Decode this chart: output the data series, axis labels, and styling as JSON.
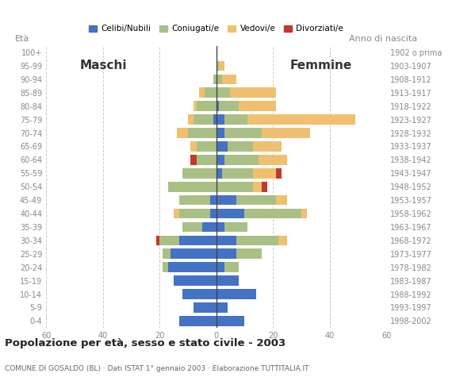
{
  "age_groups": [
    "0-4",
    "5-9",
    "10-14",
    "15-19",
    "20-24",
    "25-29",
    "30-34",
    "35-39",
    "40-44",
    "45-49",
    "50-54",
    "55-59",
    "60-64",
    "65-69",
    "70-74",
    "75-79",
    "80-84",
    "85-89",
    "90-94",
    "95-99",
    "100+"
  ],
  "birth_years": [
    "1998-2002",
    "1993-1997",
    "1988-1992",
    "1983-1987",
    "1978-1982",
    "1973-1977",
    "1968-1972",
    "1963-1967",
    "1958-1962",
    "1953-1957",
    "1948-1952",
    "1943-1947",
    "1938-1942",
    "1933-1937",
    "1928-1932",
    "1923-1927",
    "1918-1922",
    "1913-1917",
    "1908-1912",
    "1903-1907",
    "1902 o prima"
  ],
  "male": {
    "celibe": [
      13,
      8,
      12,
      15,
      17,
      16,
      13,
      5,
      2,
      2,
      0,
      0,
      0,
      0,
      0,
      1,
      0,
      0,
      0,
      0,
      0
    ],
    "coniugato": [
      0,
      0,
      0,
      0,
      2,
      3,
      7,
      7,
      11,
      11,
      17,
      12,
      7,
      7,
      10,
      7,
      7,
      4,
      1,
      0,
      0
    ],
    "vedovo": [
      0,
      0,
      0,
      0,
      0,
      0,
      0,
      0,
      2,
      0,
      0,
      0,
      0,
      2,
      4,
      2,
      1,
      2,
      0,
      0,
      0
    ],
    "divorziato": [
      0,
      0,
      0,
      0,
      0,
      0,
      1,
      0,
      0,
      0,
      0,
      0,
      2,
      0,
      0,
      0,
      0,
      0,
      0,
      0,
      0
    ]
  },
  "female": {
    "nubile": [
      10,
      4,
      14,
      8,
      3,
      7,
      7,
      3,
      10,
      7,
      0,
      2,
      3,
      4,
      3,
      3,
      1,
      0,
      0,
      0,
      0
    ],
    "coniugata": [
      0,
      0,
      0,
      0,
      5,
      9,
      15,
      8,
      20,
      14,
      13,
      11,
      12,
      9,
      13,
      8,
      7,
      5,
      2,
      1,
      0
    ],
    "vedova": [
      0,
      0,
      0,
      0,
      0,
      0,
      3,
      0,
      2,
      4,
      3,
      8,
      10,
      10,
      17,
      38,
      13,
      16,
      5,
      2,
      0
    ],
    "divorziata": [
      0,
      0,
      0,
      0,
      0,
      0,
      0,
      0,
      0,
      0,
      2,
      2,
      0,
      0,
      0,
      0,
      0,
      0,
      0,
      0,
      0
    ]
  },
  "colors": {
    "celibe_nubile": "#4472C4",
    "coniugato_coniugata": "#AABF85",
    "vedovo_vedova": "#F0C070",
    "divorziato_divorziata": "#C0392B"
  },
  "title": "Popolazione per età, sesso e stato civile - 2003",
  "subtitle": "COMUNE DI GOSALDO (BL) · Dati ISTAT 1° gennaio 2003 · Elaborazione TUTTITALIA.IT",
  "label_maschi": "Maschi",
  "label_femmine": "Femmine",
  "label_eta": "Età",
  "label_anno": "Anno di nascita",
  "xlim": 60,
  "legend_labels": [
    "Celibi/Nubili",
    "Coniugati/e",
    "Vedovi/e",
    "Divorziati/e"
  ]
}
